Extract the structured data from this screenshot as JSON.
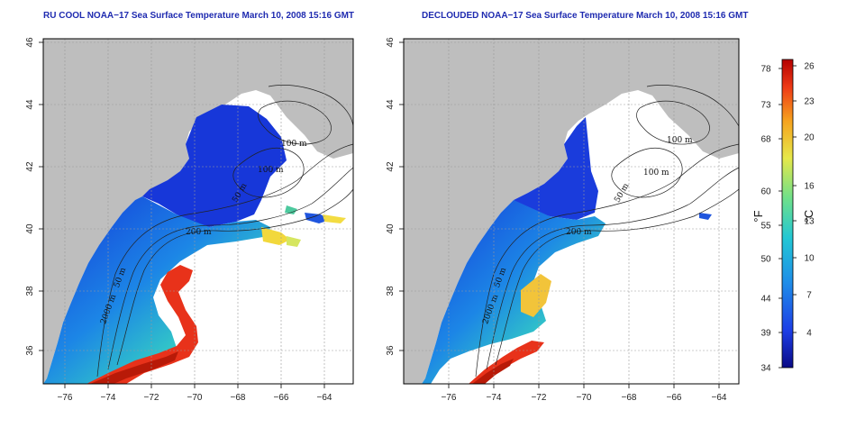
{
  "panels": [
    {
      "id": "left",
      "title": "RU COOL NOAA−17 Sea Surface Temperature March 10, 2008 15:16 GMT",
      "contour_labels": [
        "100 m",
        "100 m",
        "50 m",
        "200 m",
        "50 m",
        "2000 m"
      ]
    },
    {
      "id": "right",
      "title": "DECLOUDED NOAA−17 Sea Surface Temperature March 10, 2008 15:16 GMT",
      "contour_labels": [
        "100 m",
        "100 m",
        "50 m",
        "200 m",
        "50 m",
        "2000 m"
      ]
    }
  ],
  "x_ticks": [
    "−76",
    "−74",
    "−72",
    "−70",
    "−68",
    "−66",
    "−64"
  ],
  "y_ticks": [
    "36",
    "38",
    "40",
    "42",
    "44",
    "46"
  ],
  "colorbar": {
    "fahrenheit_ticks": [
      "78",
      "73",
      "68",
      "60",
      "55",
      "50",
      "44",
      "39",
      "34"
    ],
    "celsius_ticks": [
      "26",
      "23",
      "20",
      "16",
      "13",
      "10",
      "7",
      "4"
    ],
    "fahrenheit_label": "°F",
    "celsius_label": "°C",
    "colors": [
      "#0a0a86",
      "#1d3ee6",
      "#1f8fe8",
      "#22c7d4",
      "#6fe08a",
      "#e6e84a",
      "#f6a31e",
      "#ee3a16",
      "#b40000"
    ]
  }
}
